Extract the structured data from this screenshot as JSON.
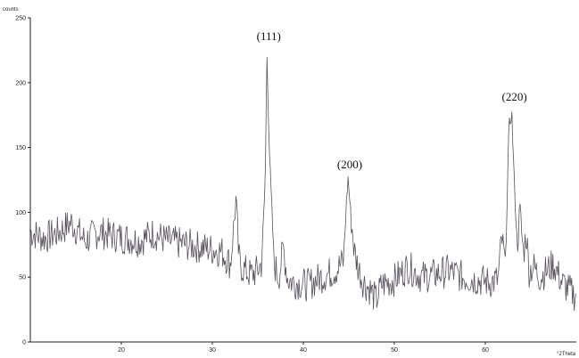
{
  "chart_data": {
    "type": "line",
    "title": "",
    "ylabel": "counts",
    "xlabel": "°2Theta",
    "xlim": [
      10,
      70
    ],
    "ylim": [
      0,
      250
    ],
    "x_ticks": [
      20,
      30,
      40,
      50,
      60
    ],
    "x_tick_labels": [
      "20",
      "30",
      "40",
      "50",
      "60"
    ],
    "y_ticks": [
      0,
      50,
      100,
      150,
      200,
      250
    ],
    "y_tick_labels": [
      "0",
      "50",
      "100",
      "150",
      "200",
      "250"
    ],
    "grid": false,
    "line_color": "#5a5060",
    "annotations": [
      {
        "text": "(111)",
        "x": 36.2,
        "y": 233
      },
      {
        "text": "(200)",
        "x": 45.1,
        "y": 134
      },
      {
        "text": "(220)",
        "x": 63.2,
        "y": 186
      }
    ],
    "series": [
      {
        "x": [
          10.0,
          11.5,
          13.0,
          14.5,
          16.0,
          17.5,
          19.0,
          20.5,
          22.0,
          23.5,
          25.0,
          26.5,
          28.0,
          29.5,
          31.0,
          32.0,
          32.6,
          32.9,
          33.2,
          33.6,
          34.2,
          34.8,
          35.4,
          35.8,
          36.0,
          36.3,
          36.8,
          37.3,
          37.8,
          38.3,
          39.0,
          40.5,
          42.0,
          43.5,
          44.4,
          44.9,
          45.2,
          45.6,
          46.0,
          46.6,
          47.4,
          48.0,
          48.6,
          50.0,
          51.5,
          53.0,
          54.5,
          56.0,
          57.5,
          59.0,
          60.5,
          61.4,
          61.8,
          62.2,
          62.6,
          62.9,
          63.2,
          63.5,
          63.8,
          64.2,
          64.5,
          64.8,
          65.3,
          66.0,
          67.5,
          68.5,
          69.5,
          70.0
        ],
        "values": [
          85,
          80,
          84,
          92,
          78,
          85,
          82,
          80,
          78,
          84,
          78,
          76,
          74,
          72,
          70,
          60,
          110,
          65,
          58,
          55,
          52,
          54,
          60,
          120,
          224,
          140,
          60,
          50,
          72,
          48,
          46,
          44,
          50,
          55,
          62,
          128,
          100,
          70,
          58,
          46,
          40,
          32,
          44,
          48,
          58,
          50,
          52,
          55,
          50,
          48,
          46,
          48,
          80,
          60,
          165,
          178,
          120,
          75,
          100,
          68,
          85,
          55,
          58,
          50,
          60,
          45,
          38,
          35
        ]
      }
    ]
  }
}
